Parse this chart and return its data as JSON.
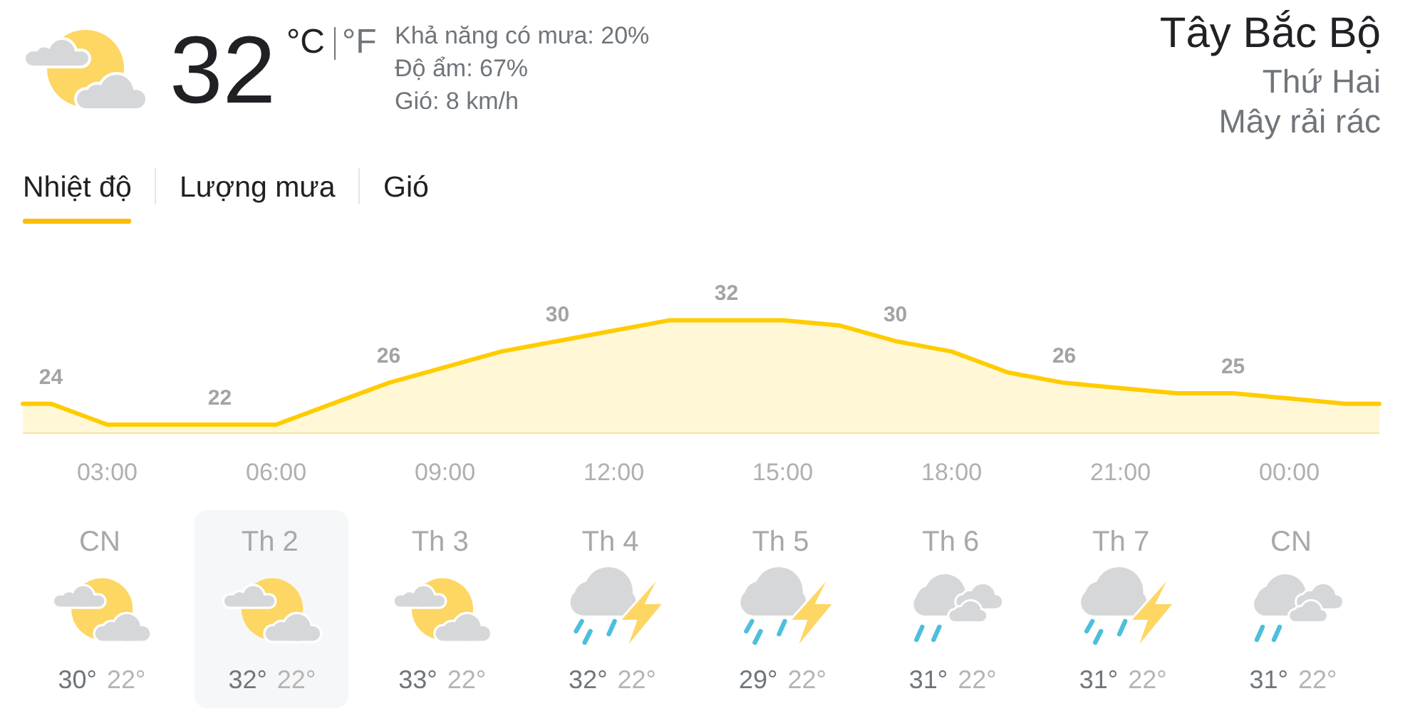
{
  "chart_data": [
    {
      "type": "other",
      "title": "Tây Bắc Bộ",
      "subtitle": "Thứ Hai",
      "annotations": [
        "Mây rải rác",
        "32",
        "°C",
        "°F",
        "Khả năng có mưa: 20%",
        "Độ ẩm: 67%",
        "Gió: 8 km/h",
        "Nhiệt độ",
        "Lượng mưa",
        "Gió"
      ]
    },
    {
      "type": "area",
      "x": [
        1.5,
        2,
        3,
        4,
        5,
        6,
        7,
        8,
        9,
        10,
        11,
        12,
        13,
        14,
        15,
        16,
        17,
        18,
        19,
        20,
        21,
        22,
        23,
        24,
        25,
        25.6
      ],
      "series": [
        {
          "color": "#ffcc00",
          "values": [
            24,
            24,
            22,
            22,
            22,
            22,
            24,
            26,
            27.5,
            29,
            30,
            31,
            32,
            32,
            32,
            31.5,
            30,
            29,
            27,
            26,
            25.5,
            25,
            25,
            24.5,
            24,
            24
          ],
          "value_labels": [
            null,
            "24",
            null,
            null,
            "22",
            null,
            null,
            "26",
            null,
            null,
            "30",
            null,
            null,
            "32",
            null,
            null,
            "30",
            null,
            null,
            "26",
            null,
            null,
            "25",
            null,
            null,
            null
          ]
        }
      ],
      "xlim": [
        1.5,
        25.6
      ],
      "xticks": [
        {
          "value": 3,
          "label": "03:00"
        },
        {
          "value": 6,
          "label": "06:00"
        },
        {
          "value": 9,
          "label": "09:00"
        },
        {
          "value": 12,
          "label": "12:00"
        },
        {
          "value": 15,
          "label": "15:00"
        },
        {
          "value": 18,
          "label": "18:00"
        },
        {
          "value": 21,
          "label": "21:00"
        },
        {
          "value": 24,
          "label": "00:00"
        }
      ],
      "tick_labels": "x"
    },
    {
      "type": "other",
      "categories": [
        "CN",
        "Th 2",
        "Th 3",
        "Th 4",
        "Th 5",
        "Th 6",
        "Th 7",
        "CN"
      ],
      "series": [
        {
          "values": [
            30,
            32,
            33,
            32,
            29,
            31,
            31,
            31
          ],
          "value_labels": [
            "30°",
            "32°",
            "33°",
            "32°",
            "29°",
            "31°",
            "31°",
            "31°"
          ]
        },
        {
          "values": [
            22,
            22,
            22,
            22,
            22,
            22,
            22,
            22
          ],
          "value_labels": [
            "22°",
            "22°",
            "22°",
            "22°",
            "22°",
            "22°",
            "22°",
            "22°"
          ]
        }
      ]
    }
  ]
}
